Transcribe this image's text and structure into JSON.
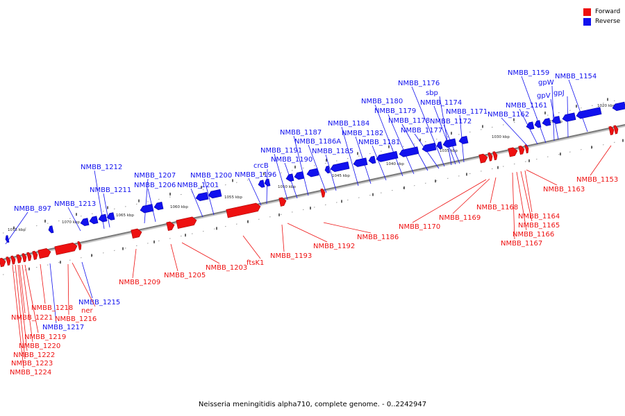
{
  "colors": {
    "forward": "#ee1111",
    "reverse": "#1111ee",
    "backbone": "#7a7a7a"
  },
  "legend": [
    {
      "label": "Forward",
      "color": "#ee1111"
    },
    {
      "label": "Reverse",
      "color": "#1111ee"
    }
  ],
  "caption": "Neisseria meningitidis alpha710, complete genome. - 0..2242947",
  "ticks": [
    "1075 kbp",
    "1070 kbp",
    "1065 kbp",
    "1060 kbp",
    "1055 kbp",
    "1050 kbp",
    "1045 kbp",
    "1040 kbp",
    "1035 kbp",
    "1030 kbp",
    "1025 kbp",
    "1020 kbp"
  ],
  "reverse_genes": [
    "NMBB_897",
    "NMBB_1213",
    "NMBB_1212",
    "NMBB_1211",
    "NMBB_1207",
    "NMBB_1206",
    "NMBB_1201",
    "NMBB_1200",
    "NMBB_1196",
    "crcB",
    "NMBB_1191",
    "NMBB_1190",
    "NMBB_1187",
    "NMBB_1186A",
    "NMBB_1185",
    "NMBB_1184",
    "NMBB_1182",
    "NMBB_1181",
    "NMBB_1180",
    "NMBB_1179",
    "NMBB_1178",
    "NMBB_1177",
    "NMBB_1176",
    "sbp",
    "NMBB_1174",
    "NMBB_1172",
    "NMBB_1171",
    "NMBB_1162",
    "NMBB_1161",
    "NMBB_1159",
    "gpW",
    "gpV",
    "gpJ",
    "NMBB_1154",
    "NMBB_1215",
    "NMBB_1217"
  ],
  "forward_genes": [
    "NMBB_1218",
    "NMBB_1216",
    "ner",
    "NMBB_1221",
    "NMBB_1219",
    "NMBB_1220",
    "NMBB_1222",
    "NMBB_1223",
    "NMBB_1224",
    "NMBB_1209",
    "NMBB_1205",
    "NMBB_1203",
    "ftsK1",
    "NMBB_1193",
    "NMBB_1192",
    "NMBB_1186",
    "NMBB_1170",
    "NMBB_1169",
    "NMBB_1168",
    "NMBB_1167",
    "NMBB_1166",
    "NMBB_1165",
    "NMBB_1164",
    "NMBB_1163",
    "NMBB_1153"
  ]
}
